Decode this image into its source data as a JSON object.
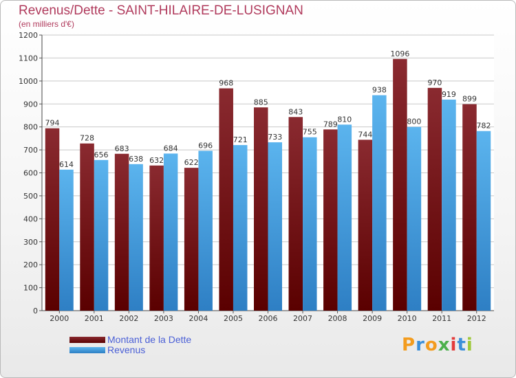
{
  "header": {
    "title": "Revenus/Dette - SAINT-HILAIRE-DE-LUSIGNAN",
    "subtitle": "(en milliers d'€)"
  },
  "logo": {
    "text": "Proxiti",
    "letter_colors": [
      "#f39c1e",
      "#3b8fd9",
      "#f39c1e",
      "#4bb04b",
      "#e33b3b",
      "#3b8fd9",
      "#9ec93a"
    ]
  },
  "colors": {
    "dette_top": "#8a2a30",
    "dette_bottom": "#5a0000",
    "revenus_top": "#5bb4ee",
    "revenus_bottom": "#2e7fc4",
    "grid": "#c8c8c8"
  },
  "chart_data": {
    "type": "bar",
    "title": "Revenus/Dette - SAINT-HILAIRE-DE-LUSIGNAN",
    "subtitle": "(en milliers d'€)",
    "categories": [
      "2000",
      "2001",
      "2002",
      "2003",
      "2004",
      "2005",
      "2006",
      "2007",
      "2008",
      "2009",
      "2010",
      "2011",
      "2012"
    ],
    "series": [
      {
        "name": "Montant de la Dette",
        "values": [
          794,
          728,
          683,
          632,
          622,
          968,
          885,
          843,
          789,
          744,
          1096,
          970,
          899
        ]
      },
      {
        "name": "Revenus",
        "values": [
          614,
          656,
          638,
          684,
          696,
          721,
          733,
          755,
          810,
          938,
          800,
          919,
          782
        ]
      }
    ],
    "yticks": [
      0,
      100,
      200,
      300,
      400,
      500,
      600,
      700,
      800,
      900,
      1000,
      1100,
      1200
    ],
    "ylim": [
      0,
      1200
    ],
    "grid": true,
    "legend_position": "bottom-left"
  }
}
